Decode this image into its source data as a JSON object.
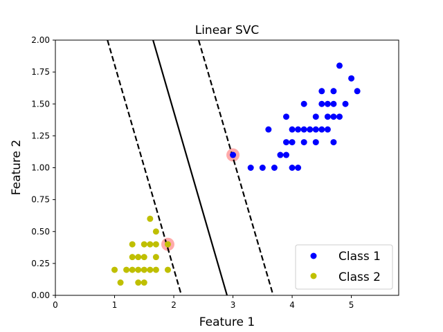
{
  "chart_data": {
    "type": "scatter",
    "title": "Linear SVC",
    "xlabel": "Feature 1",
    "ylabel": "Feature 2",
    "xlim": [
      0,
      5.8
    ],
    "ylim": [
      0,
      2.0
    ],
    "xticks": [
      0,
      1,
      2,
      3,
      4,
      5
    ],
    "yticks": [
      0.0,
      0.25,
      0.5,
      0.75,
      1.0,
      1.25,
      1.5,
      1.75,
      2.0
    ],
    "xtick_labels": [
      "0",
      "1",
      "2",
      "3",
      "4",
      "5"
    ],
    "ytick_labels": [
      "0.00",
      "0.25",
      "0.50",
      "0.75",
      "1.00",
      "1.25",
      "1.50",
      "1.75",
      "2.00"
    ],
    "grid": false,
    "legend_position": "lower-right",
    "series": [
      {
        "name": "Class 1",
        "color": "#0000ff",
        "points": [
          [
            3.0,
            1.1
          ],
          [
            3.3,
            1.0
          ],
          [
            3.5,
            1.0
          ],
          [
            3.6,
            1.3
          ],
          [
            3.7,
            1.0
          ],
          [
            3.8,
            1.1
          ],
          [
            3.9,
            1.1
          ],
          [
            3.9,
            1.2
          ],
          [
            3.9,
            1.4
          ],
          [
            4.0,
            1.0
          ],
          [
            4.0,
            1.2
          ],
          [
            4.0,
            1.3
          ],
          [
            4.1,
            1.0
          ],
          [
            4.1,
            1.3
          ],
          [
            4.2,
            1.2
          ],
          [
            4.2,
            1.3
          ],
          [
            4.2,
            1.5
          ],
          [
            4.3,
            1.3
          ],
          [
            4.4,
            1.2
          ],
          [
            4.4,
            1.3
          ],
          [
            4.4,
            1.4
          ],
          [
            4.5,
            1.3
          ],
          [
            4.5,
            1.5
          ],
          [
            4.5,
            1.6
          ],
          [
            4.6,
            1.3
          ],
          [
            4.6,
            1.4
          ],
          [
            4.6,
            1.5
          ],
          [
            4.7,
            1.2
          ],
          [
            4.7,
            1.4
          ],
          [
            4.7,
            1.5
          ],
          [
            4.7,
            1.6
          ],
          [
            4.8,
            1.4
          ],
          [
            4.8,
            1.8
          ],
          [
            4.9,
            1.5
          ],
          [
            5.0,
            1.7
          ],
          [
            5.1,
            1.6
          ]
        ]
      },
      {
        "name": "Class 2",
        "color": "#bfbf00",
        "points": [
          [
            1.0,
            0.2
          ],
          [
            1.1,
            0.1
          ],
          [
            1.2,
            0.2
          ],
          [
            1.3,
            0.2
          ],
          [
            1.3,
            0.3
          ],
          [
            1.3,
            0.4
          ],
          [
            1.4,
            0.1
          ],
          [
            1.4,
            0.2
          ],
          [
            1.4,
            0.3
          ],
          [
            1.5,
            0.1
          ],
          [
            1.5,
            0.2
          ],
          [
            1.5,
            0.3
          ],
          [
            1.5,
            0.4
          ],
          [
            1.6,
            0.2
          ],
          [
            1.6,
            0.4
          ],
          [
            1.6,
            0.6
          ],
          [
            1.7,
            0.2
          ],
          [
            1.7,
            0.3
          ],
          [
            1.7,
            0.4
          ],
          [
            1.7,
            0.5
          ],
          [
            1.9,
            0.2
          ],
          [
            1.9,
            0.4
          ]
        ]
      }
    ],
    "support_vectors": {
      "color": "#ffaaaa",
      "points": [
        [
          3.0,
          1.1
        ],
        [
          1.9,
          0.4
        ]
      ]
    },
    "lines": [
      {
        "name": "decision-boundary",
        "style": "solid",
        "points": [
          [
            1.65,
            2.0
          ],
          [
            2.9,
            0.0
          ]
        ]
      },
      {
        "name": "upper-margin",
        "style": "dashed",
        "points": [
          [
            2.42,
            2.0
          ],
          [
            3.68,
            0.0
          ]
        ]
      },
      {
        "name": "lower-margin",
        "style": "dashed",
        "points": [
          [
            0.88,
            2.0
          ],
          [
            2.13,
            0.0
          ]
        ]
      }
    ]
  }
}
